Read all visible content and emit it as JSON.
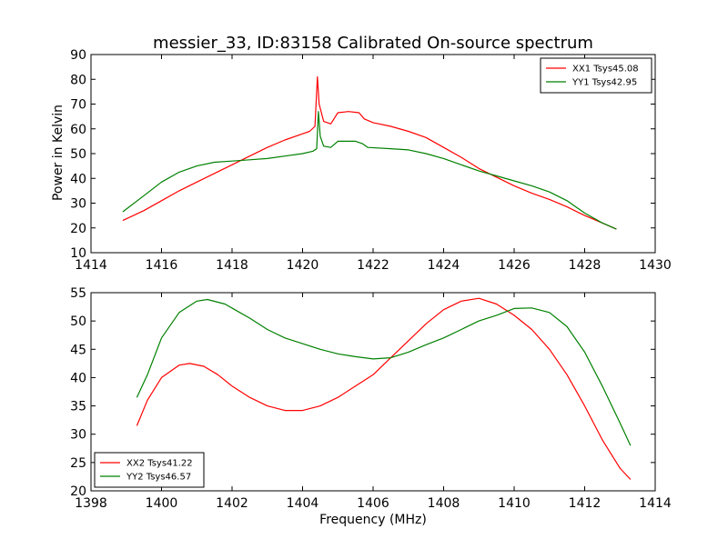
{
  "title": "messier_33, ID:83158 Calibrated On-source spectrum",
  "chart_data": [
    {
      "type": "line",
      "title": "messier_33, ID:83158 Calibrated On-source spectrum",
      "xlabel": "",
      "ylabel": "Power in Kelvin",
      "xlim": [
        1414,
        1430
      ],
      "ylim": [
        10,
        90
      ],
      "xticks": [
        1414,
        1416,
        1418,
        1420,
        1422,
        1424,
        1426,
        1428,
        1430
      ],
      "yticks": [
        10,
        20,
        30,
        40,
        50,
        60,
        70,
        80,
        90
      ],
      "legend_position": "top-right",
      "grid": false,
      "series": [
        {
          "name": "XX1 Tsys45.08",
          "color": "#ff0000",
          "points": [
            [
              1414.9,
              23
            ],
            [
              1415.5,
              27
            ],
            [
              1416,
              31
            ],
            [
              1416.5,
              35
            ],
            [
              1417,
              38.5
            ],
            [
              1417.5,
              42
            ],
            [
              1418,
              45.5
            ],
            [
              1418.5,
              49
            ],
            [
              1419,
              52.5
            ],
            [
              1419.5,
              55.5
            ],
            [
              1420,
              58
            ],
            [
              1420.2,
              59
            ],
            [
              1420.35,
              61
            ],
            [
              1420.42,
              81
            ],
            [
              1420.47,
              70
            ],
            [
              1420.6,
              63
            ],
            [
              1420.8,
              62
            ],
            [
              1421,
              66.5
            ],
            [
              1421.3,
              67
            ],
            [
              1421.6,
              66.5
            ],
            [
              1421.75,
              64
            ],
            [
              1422,
              62.5
            ],
            [
              1422.5,
              61
            ],
            [
              1423,
              59
            ],
            [
              1423.5,
              56.5
            ],
            [
              1424,
              52.5
            ],
            [
              1424.5,
              48.5
            ],
            [
              1425,
              44
            ],
            [
              1425.5,
              40.5
            ],
            [
              1426,
              37
            ],
            [
              1426.5,
              34
            ],
            [
              1427,
              31.5
            ],
            [
              1427.5,
              28.5
            ],
            [
              1428,
              25
            ],
            [
              1428.5,
              22
            ],
            [
              1428.9,
              19.5
            ]
          ]
        },
        {
          "name": "YY1 Tsys42.95",
          "color": "#008000",
          "points": [
            [
              1414.9,
              26.5
            ],
            [
              1415.5,
              33
            ],
            [
              1416,
              38.5
            ],
            [
              1416.5,
              42.5
            ],
            [
              1417,
              45
            ],
            [
              1417.5,
              46.5
            ],
            [
              1418,
              47
            ],
            [
              1418.5,
              47.5
            ],
            [
              1419,
              48
            ],
            [
              1419.5,
              49
            ],
            [
              1420,
              50
            ],
            [
              1420.3,
              51
            ],
            [
              1420.4,
              52
            ],
            [
              1420.45,
              67
            ],
            [
              1420.5,
              57
            ],
            [
              1420.6,
              53
            ],
            [
              1420.8,
              52.5
            ],
            [
              1421,
              55
            ],
            [
              1421.5,
              55
            ],
            [
              1421.7,
              54
            ],
            [
              1421.85,
              52.5
            ],
            [
              1422.5,
              52
            ],
            [
              1423,
              51.5
            ],
            [
              1423.5,
              50
            ],
            [
              1424,
              48
            ],
            [
              1424.5,
              45.5
            ],
            [
              1425,
              43
            ],
            [
              1425.5,
              41
            ],
            [
              1426,
              39
            ],
            [
              1426.5,
              37
            ],
            [
              1427,
              34.5
            ],
            [
              1427.5,
              31
            ],
            [
              1428,
              26
            ],
            [
              1428.5,
              22
            ],
            [
              1428.9,
              19.5
            ]
          ]
        }
      ]
    },
    {
      "type": "line",
      "title": "",
      "xlabel": "Frequency (MHz)",
      "ylabel": "",
      "xlim": [
        1398,
        1414
      ],
      "ylim": [
        20,
        55
      ],
      "xticks": [
        1398,
        1400,
        1402,
        1404,
        1406,
        1408,
        1410,
        1412,
        1414
      ],
      "yticks": [
        20,
        25,
        30,
        35,
        40,
        45,
        50,
        55
      ],
      "legend_position": "bottom-left",
      "grid": false,
      "series": [
        {
          "name": "XX2 Tsys41.22",
          "color": "#ff0000",
          "points": [
            [
              1399.3,
              31.5
            ],
            [
              1399.6,
              36
            ],
            [
              1400,
              40
            ],
            [
              1400.5,
              42.2
            ],
            [
              1400.8,
              42.5
            ],
            [
              1401.2,
              42
            ],
            [
              1401.6,
              40.5
            ],
            [
              1402,
              38.5
            ],
            [
              1402.5,
              36.5
            ],
            [
              1403,
              35
            ],
            [
              1403.5,
              34.2
            ],
            [
              1404,
              34.2
            ],
            [
              1404.5,
              35
            ],
            [
              1405,
              36.5
            ],
            [
              1405.5,
              38.5
            ],
            [
              1406,
              40.5
            ],
            [
              1406.5,
              43.5
            ],
            [
              1407,
              46.5
            ],
            [
              1407.5,
              49.5
            ],
            [
              1408,
              52
            ],
            [
              1408.5,
              53.5
            ],
            [
              1409,
              54
            ],
            [
              1409.5,
              53
            ],
            [
              1410,
              51
            ],
            [
              1410.5,
              48.5
            ],
            [
              1411,
              45
            ],
            [
              1411.5,
              40.5
            ],
            [
              1412,
              35
            ],
            [
              1412.5,
              29
            ],
            [
              1413,
              24
            ],
            [
              1413.3,
              22
            ]
          ]
        },
        {
          "name": "YY2 Tsys46.57",
          "color": "#008000",
          "points": [
            [
              1399.3,
              36.5
            ],
            [
              1399.6,
              40.5
            ],
            [
              1400,
              47
            ],
            [
              1400.5,
              51.5
            ],
            [
              1401,
              53.5
            ],
            [
              1401.3,
              53.8
            ],
            [
              1401.8,
              53
            ],
            [
              1402.5,
              50.5
            ],
            [
              1403,
              48.5
            ],
            [
              1403.5,
              47
            ],
            [
              1404,
              46
            ],
            [
              1404.5,
              45
            ],
            [
              1405,
              44.2
            ],
            [
              1405.5,
              43.7
            ],
            [
              1406,
              43.3
            ],
            [
              1406.5,
              43.5
            ],
            [
              1407,
              44.5
            ],
            [
              1407.5,
              45.8
            ],
            [
              1408,
              47
            ],
            [
              1408.5,
              48.5
            ],
            [
              1409,
              50
            ],
            [
              1409.5,
              51
            ],
            [
              1410,
              52.2
            ],
            [
              1410.5,
              52.3
            ],
            [
              1411,
              51.5
            ],
            [
              1411.5,
              49
            ],
            [
              1412,
              44.5
            ],
            [
              1412.5,
              38.5
            ],
            [
              1413,
              32
            ],
            [
              1413.3,
              28
            ]
          ]
        }
      ]
    }
  ]
}
